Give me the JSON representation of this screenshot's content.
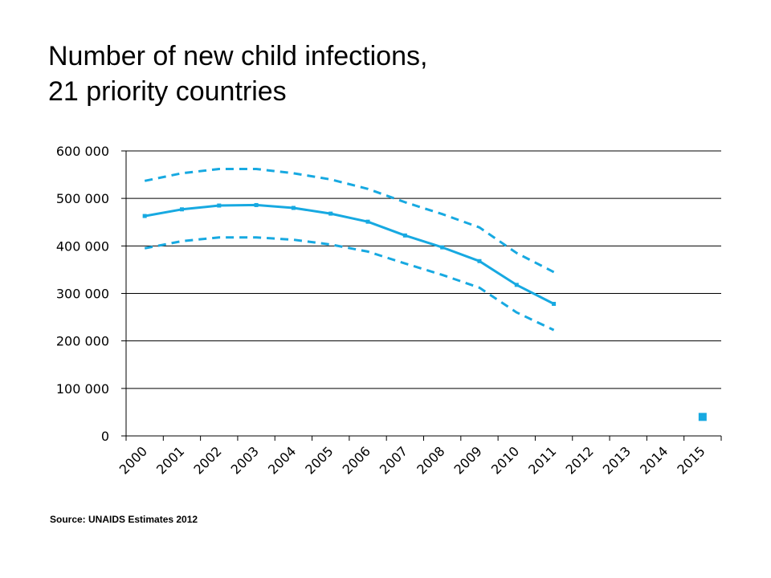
{
  "title_lines": [
    "Number of new child infections,",
    "21 priority countries"
  ],
  "source": "Source: UNAIDS Estimates 2012",
  "chart_data": {
    "type": "line",
    "x": [
      2000,
      2001,
      2002,
      2003,
      2004,
      2005,
      2006,
      2007,
      2008,
      2009,
      2010,
      2011
    ],
    "xtick_labels": [
      "2000",
      "2001",
      "2002",
      "2003",
      "2004",
      "2005",
      "2006",
      "2007",
      "2008",
      "2009",
      "2010",
      "2011",
      "2012",
      "2013",
      "2014",
      "2015"
    ],
    "ytick_labels": [
      "0",
      "100 000",
      "200 000",
      "300 000",
      "400 000",
      "500 000",
      "600 000"
    ],
    "yticks": [
      0,
      100000,
      200000,
      300000,
      400000,
      500000,
      600000
    ],
    "ylim": [
      0,
      600000
    ],
    "xlim": [
      2000,
      2015
    ],
    "series": [
      {
        "role": "estimate",
        "style": "solid-with-markers",
        "values": [
          463000,
          477000,
          485000,
          486000,
          480000,
          468000,
          451000,
          422000,
          397000,
          368000,
          318000,
          278000
        ]
      },
      {
        "role": "upper-bound",
        "style": "dashed",
        "values": [
          537000,
          553000,
          562000,
          562000,
          553000,
          540000,
          520000,
          492000,
          467000,
          439000,
          385000,
          345000
        ]
      },
      {
        "role": "lower-bound",
        "style": "dashed",
        "values": [
          395000,
          410000,
          418000,
          418000,
          413000,
          403000,
          388000,
          363000,
          339000,
          312000,
          260000,
          223000
        ]
      }
    ],
    "target_point": {
      "x": 2015,
      "y": 40000
    },
    "grid": "horizontal",
    "legend": "none",
    "colors": {
      "series": "#17a9e1",
      "grid": "#000000",
      "axis": "#000000"
    }
  }
}
